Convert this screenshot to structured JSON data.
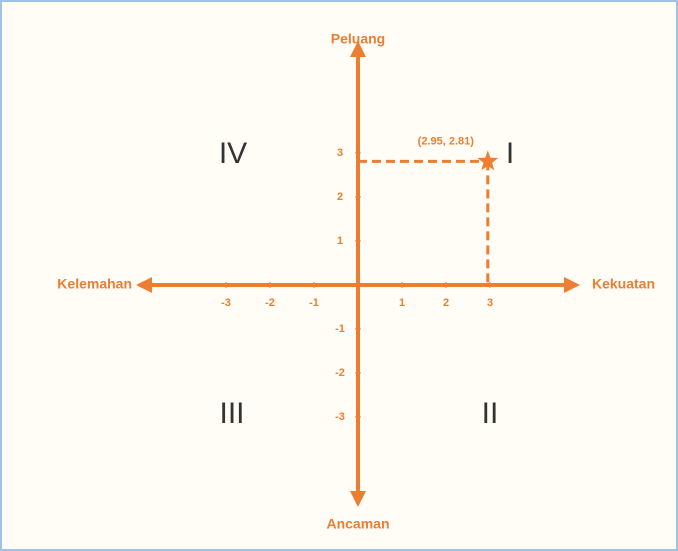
{
  "chart_data": {
    "type": "scatter",
    "axis_labels": {
      "top": "Peluang",
      "bottom": "Ancaman",
      "left": "Kelemahan",
      "right": "Kekuatan"
    },
    "quadrant_labels": [
      "I",
      "II",
      "III",
      "IV"
    ],
    "xlim": [
      -5,
      5
    ],
    "ylim": [
      -5,
      5.5
    ],
    "xticks": [
      -3,
      -2,
      -1,
      1,
      2,
      3
    ],
    "yticks": [
      3,
      2,
      1,
      -1,
      -2,
      -3
    ],
    "axis_color": "#ed7d31",
    "series": [
      {
        "color": "#ed7d31",
        "x": [
          2.95
        ],
        "values": [
          2.81
        ],
        "value_labels": [
          "(2.95, 2.81)"
        ]
      }
    ]
  }
}
